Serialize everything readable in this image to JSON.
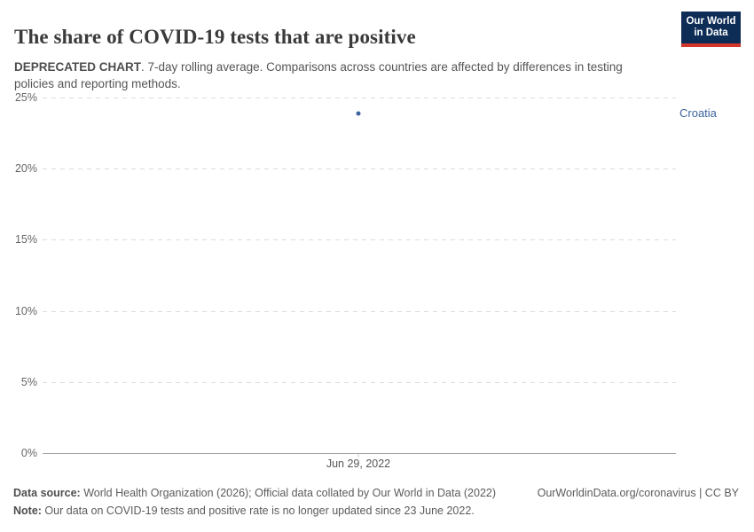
{
  "header": {
    "title": "The share of COVID-19 tests that are positive",
    "logo": {
      "line1": "Our World",
      "line2": "in Data",
      "bg_color": "#0d2d57",
      "stripe_color": "#d2372c"
    }
  },
  "subtitle": {
    "bold": "DEPRECATED CHART",
    "rest": ". 7-day rolling average. Comparisons across countries are affected by differences in testing policies and reporting methods."
  },
  "chart_data": {
    "type": "scatter",
    "title": "The share of COVID-19 tests that are positive",
    "ylim": [
      0,
      25
    ],
    "yticks": [
      0,
      5,
      10,
      15,
      20,
      25
    ],
    "ytick_suffix": "%",
    "grid": true,
    "xticks": [
      "Jun 29, 2022"
    ],
    "series": [
      {
        "name": "Croatia",
        "color": "#3d649c",
        "points": [
          {
            "x": "Jun 29, 2022",
            "y": 23.9
          }
        ]
      }
    ],
    "legend_position": "right-of-point"
  },
  "footer": {
    "source_label": "Data source:",
    "source_text": " World Health Organization (2026); Official data collated by Our World in Data (2022)",
    "link_text": "OurWorldinData.org/coronavirus | CC BY",
    "note_label": "Note:",
    "note_text": " Our data on COVID-19 tests and positive rate is no longer updated since 23 June 2022."
  }
}
